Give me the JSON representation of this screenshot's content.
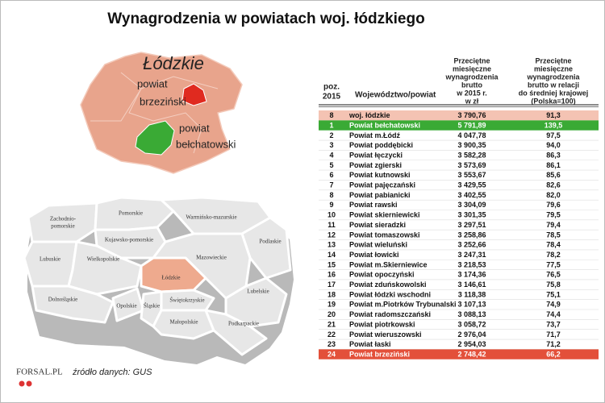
{
  "header": {
    "title": "Wynagrodzenia w powiatach woj. łódzkiego"
  },
  "region_map": {
    "title": "Łódzkie",
    "labels": [
      [
        "powiat",
        "brzeziński"
      ],
      [
        "powiat",
        "bełchatowski"
      ]
    ]
  },
  "poland_map": {
    "regions": [
      [
        "Zachodnio-",
        "pomorskie"
      ],
      [
        "Pomorskie"
      ],
      [
        "Warmińsko-mazurskie"
      ],
      [
        "Podlaskie"
      ],
      [
        "Kujawsko-pomorskie"
      ],
      [
        "Lubuskie"
      ],
      [
        "Wielkopolskie"
      ],
      [
        "Mazowieckie"
      ],
      [
        "Łódzkie"
      ],
      [
        "Dolnośląskie"
      ],
      [
        "Opolskie"
      ],
      [
        "Śląskie"
      ],
      [
        "Świętokrzyskie"
      ],
      [
        "Lubelskie"
      ],
      [
        "Małopolskie"
      ],
      [
        "Podkarpackie"
      ]
    ]
  },
  "table": {
    "columns": [
      [
        "poz.",
        "2015"
      ],
      [
        "Województwo/powiat"
      ],
      [
        "Przeciętne",
        "miesięczne",
        "wynagrodzenia",
        "brutto",
        "w 2015 r.",
        "w zł"
      ],
      [
        "Przeciętne",
        "miesięczne",
        "wynagrodzenia",
        "brutto w relacji",
        "do średniej krajowej",
        "(Polska=100)"
      ]
    ],
    "rows": [
      [
        "8",
        "woj. łódzkie",
        "3 790,76",
        "91,3"
      ],
      [
        "1",
        "Powiat bełchatowski",
        "5 791,89",
        "139,5"
      ],
      [
        "2",
        "Powiat m.Łódź",
        "4 047,78",
        "97,5"
      ],
      [
        "3",
        "Powiat poddębicki",
        "3 900,35",
        "94,0"
      ],
      [
        "4",
        "Powiat łęczycki",
        "3 582,28",
        "86,3"
      ],
      [
        "5",
        "Powiat zgierski",
        "3 573,69",
        "86,1"
      ],
      [
        "6",
        "Powiat kutnowski",
        "3 553,67",
        "85,6"
      ],
      [
        "7",
        "Powiat pajęczański",
        "3 429,55",
        "82,6"
      ],
      [
        "8",
        "Powiat pabianicki",
        "3 402,55",
        "82,0"
      ],
      [
        "9",
        "Powiat rawski",
        "3 304,09",
        "79,6"
      ],
      [
        "10",
        "Powiat skierniewicki",
        "3 301,35",
        "79,5"
      ],
      [
        "11",
        "Powiat sieradzki",
        "3 297,51",
        "79,4"
      ],
      [
        "12",
        "Powiat tomaszowski",
        "3 258,86",
        "78,5"
      ],
      [
        "13",
        "Powiat wieluński",
        "3 252,66",
        "78,4"
      ],
      [
        "14",
        "Powiat łowicki",
        "3 247,31",
        "78,2"
      ],
      [
        "15",
        "Powiat m.Skierniewice",
        "3 218,53",
        "77,5"
      ],
      [
        "16",
        "Powiat opoczyński",
        "3 174,36",
        "76,5"
      ],
      [
        "17",
        "Powiat zduńskowolski",
        "3 146,61",
        "75,8"
      ],
      [
        "18",
        "Powiat łódzki wschodni",
        "3 118,38",
        "75,1"
      ],
      [
        "19",
        "Powiat m.Piotrków Trybunalski",
        "3 107,13",
        "74,9"
      ],
      [
        "20",
        "Powiat radomszczański",
        "3 088,13",
        "74,4"
      ],
      [
        "21",
        "Powiat piotrkowski",
        "3 058,72",
        "73,7"
      ],
      [
        "22",
        "Powiat wieruszowski",
        "2 976,04",
        "71,7"
      ],
      [
        "23",
        "Powiat łaski",
        "2 954,03",
        "71,2"
      ],
      [
        "24",
        "Powiat brzeziński",
        "2 748,42",
        "66,2"
      ]
    ]
  },
  "footer": {
    "source": "źródło danych: GUS",
    "logo": "FORSAL.PL"
  }
}
